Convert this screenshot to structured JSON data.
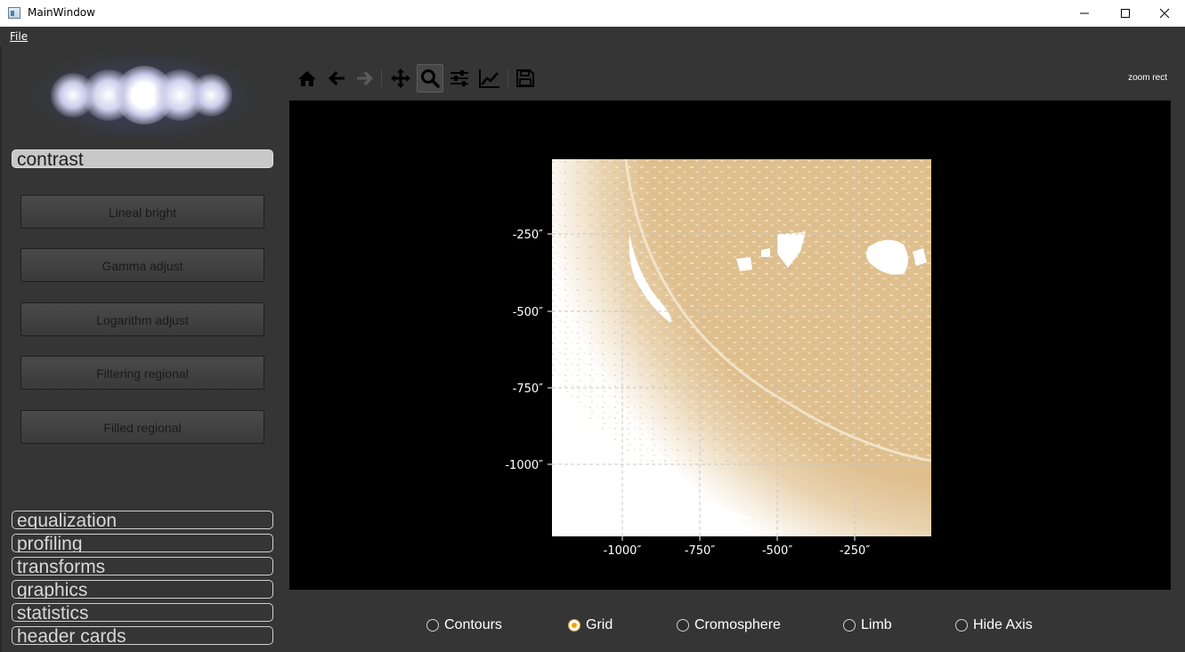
{
  "window": {
    "title": "MainWindow"
  },
  "menu": {
    "file_label": "File"
  },
  "sidebar": {
    "active_section": "contrast",
    "buttons": [
      "Lineal bright",
      "Gamma adjust",
      "Logarithm adjust",
      "Filtering regional",
      "Filled regional"
    ],
    "sections": [
      "equalization",
      "profiling",
      "transforms",
      "graphics",
      "statistics",
      "header cards"
    ]
  },
  "toolbar": {
    "icons": [
      "home-icon",
      "back-arrow-icon",
      "forward-arrow-icon",
      "pan-move-icon",
      "zoom-magnifier-icon",
      "configure-subplots-icon",
      "edit-axis-icon",
      "save-icon"
    ],
    "active_tool": "zoom-magnifier-icon",
    "mode_label": "zoom rect"
  },
  "plot": {
    "x_ticks": [
      "-1000″",
      "-750″",
      "-500″",
      "-250″"
    ],
    "y_ticks": [
      "-250″",
      "-500″",
      "-750″",
      "-1000″"
    ],
    "image_color": "#dfbf8e",
    "grid": true
  },
  "options": {
    "radios": [
      {
        "label": "Contours",
        "checked": false
      },
      {
        "label": "Grid",
        "checked": true
      },
      {
        "label": "Cromosphere",
        "checked": false
      },
      {
        "label": "Limb",
        "checked": false
      },
      {
        "label": "Hide Axis",
        "checked": false
      }
    ]
  },
  "colors": {
    "background": "#353535",
    "accent_radio": "#f0a500",
    "plot_background": "#000000"
  }
}
